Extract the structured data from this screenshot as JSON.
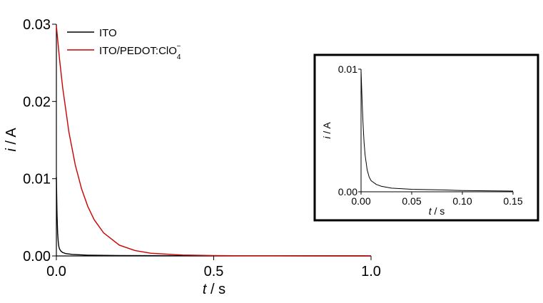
{
  "chart_data": [
    {
      "type": "line",
      "xlabel_var": "t",
      "xlabel_unit": " / s",
      "ylabel_var": "i",
      "ylabel_unit": " / A",
      "xlim": [
        0,
        1.0
      ],
      "ylim": [
        0,
        0.03
      ],
      "x_ticks": [
        "0.0",
        "0.5",
        "1.0"
      ],
      "y_ticks": [
        "0.00",
        "0.01",
        "0.02",
        "0.03"
      ],
      "legend": "top-left",
      "grid": false,
      "series": [
        {
          "name": "ITO",
          "color": "#000000",
          "x": [
            0,
            0.002,
            0.004,
            0.006,
            0.008,
            0.01,
            0.015,
            0.02,
            0.03,
            0.05,
            0.1,
            0.2,
            0.5,
            1.0
          ],
          "y": [
            0.0102,
            0.0055,
            0.003,
            0.0018,
            0.0012,
            0.0009,
            0.0006,
            0.00045,
            0.0003,
            0.0002,
            0.0001,
            5e-05,
            2e-05,
            1e-05
          ]
        },
        {
          "name_main": "ITO/PEDOT:ClO",
          "name_sub": "4",
          "name_sup": "−",
          "color": "#cc0000",
          "x": [
            0,
            0.01,
            0.02,
            0.04,
            0.06,
            0.08,
            0.1,
            0.12,
            0.15,
            0.2,
            0.25,
            0.3,
            0.4,
            0.5,
            0.6,
            0.8,
            1.0
          ],
          "y": [
            0.0298,
            0.0255,
            0.0218,
            0.016,
            0.0118,
            0.0087,
            0.0064,
            0.0047,
            0.003,
            0.0014,
            0.0007,
            0.00035,
            0.00012,
            5e-05,
            2e-05,
            1e-05,
            1e-05
          ]
        }
      ]
    },
    {
      "type": "line",
      "role": "inset",
      "xlabel_var": "t",
      "xlabel_unit": " / s",
      "ylabel_var": "i",
      "ylabel_unit": " / A",
      "xlim": [
        0,
        0.15
      ],
      "ylim": [
        0,
        0.01
      ],
      "x_ticks": [
        "0.00",
        "0.05",
        "0.10",
        "0.15"
      ],
      "y_ticks": [
        "0.00",
        "0.01"
      ],
      "grid": false,
      "series": [
        {
          "color": "#000000",
          "x": [
            0,
            0.001,
            0.002,
            0.003,
            0.004,
            0.006,
            0.008,
            0.01,
            0.015,
            0.02,
            0.03,
            0.05,
            0.08,
            0.1,
            0.15
          ],
          "y": [
            0.0099,
            0.0075,
            0.0055,
            0.004,
            0.003,
            0.0018,
            0.0012,
            0.0009,
            0.0006,
            0.00045,
            0.0003,
            0.0002,
            0.00015,
            0.0001,
            6e-05
          ]
        }
      ]
    }
  ]
}
